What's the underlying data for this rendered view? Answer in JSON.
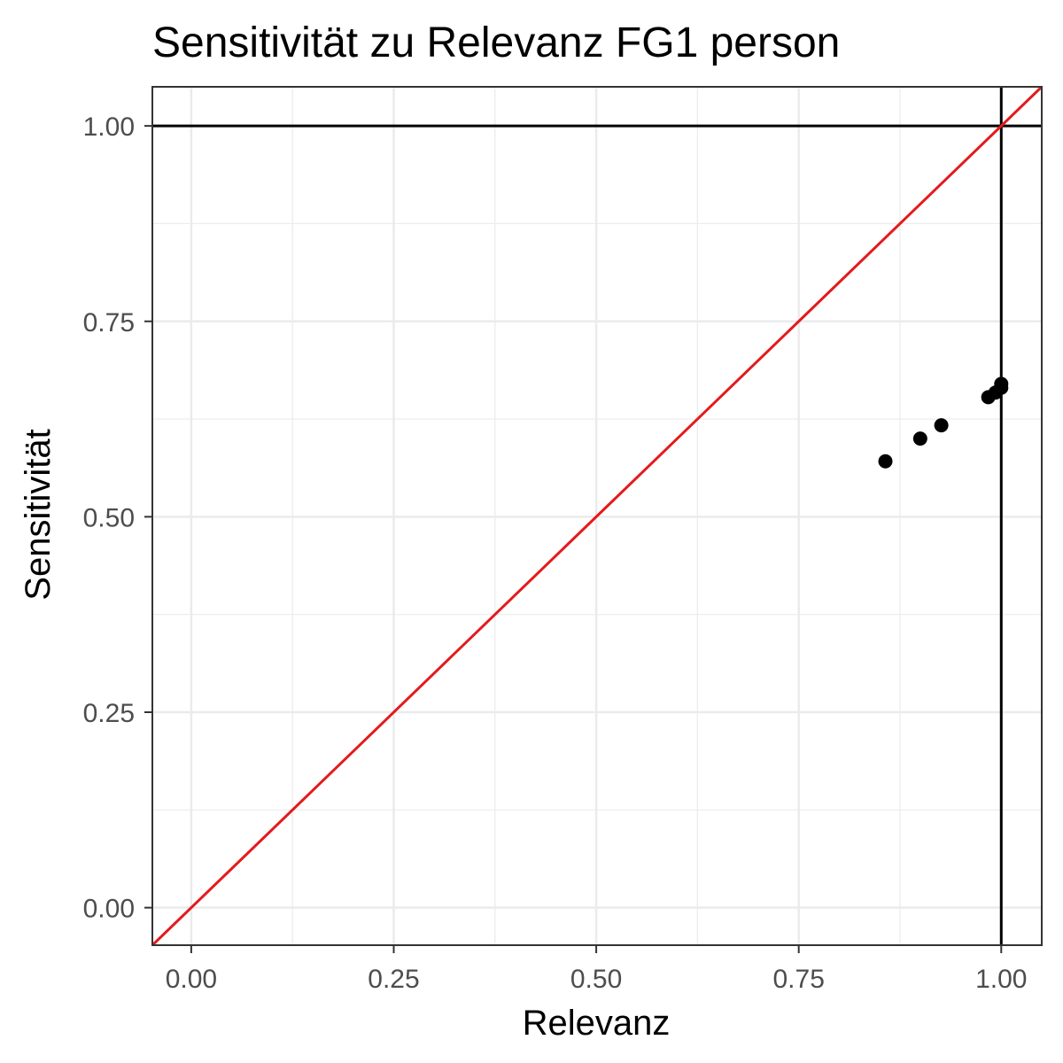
{
  "chart_data": {
    "type": "scatter",
    "title": "Sensitivität zu Relevanz FG1 person",
    "xlabel": "Relevanz",
    "ylabel": "Sensitivität",
    "xlim": [
      -0.048,
      1.05
    ],
    "ylim": [
      -0.048,
      1.05
    ],
    "x_ticks": [
      0,
      0.25,
      0.5,
      0.75,
      1
    ],
    "x_tick_labels": [
      "0.00",
      "0.25",
      "0.50",
      "0.75",
      "1.00"
    ],
    "y_ticks": [
      0,
      0.25,
      0.5,
      0.75,
      1
    ],
    "y_tick_labels": [
      "0.00",
      "0.25",
      "0.50",
      "0.75",
      "1.00"
    ],
    "grid": true,
    "series": [
      {
        "name": "FG1 person",
        "points": [
          {
            "x": 0.857,
            "y": 0.571
          },
          {
            "x": 0.9,
            "y": 0.6
          },
          {
            "x": 0.926,
            "y": 0.617
          },
          {
            "x": 0.984,
            "y": 0.653
          },
          {
            "x": 0.993,
            "y": 0.659
          },
          {
            "x": 1.0,
            "y": 0.665
          },
          {
            "x": 1.0,
            "y": 0.67
          }
        ]
      }
    ],
    "reference_lines": [
      {
        "type": "identity",
        "slope": 1,
        "intercept": 0,
        "color": "#e41a1c"
      },
      {
        "type": "horizontal",
        "y": 1,
        "color": "#000000"
      },
      {
        "type": "vertical",
        "x": 1,
        "color": "#000000"
      }
    ],
    "colors": {
      "points": "#000000",
      "panel_border": "#333333",
      "grid_major": "#ebebeb",
      "tick_label": "#4d4d4d"
    }
  }
}
